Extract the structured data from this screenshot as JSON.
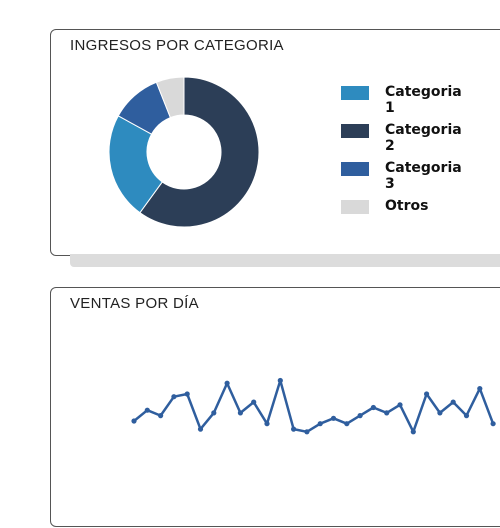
{
  "panels": {
    "income_title": "INGRESOS POR CATEGORIA",
    "sales_title": "VENTAS POR DÍA"
  },
  "chart_data": [
    {
      "type": "pie",
      "variant": "donut",
      "title": "INGRESOS POR CATEGORIA",
      "categories": [
        "Categoria 1",
        "Categoria 2",
        "Categoria 3",
        "Otros"
      ],
      "values": [
        23,
        60,
        11,
        6
      ],
      "colors": [
        "#2e8bbf",
        "#2c3e57",
        "#2f5e9e",
        "#d9d9d9"
      ],
      "legend": "right"
    },
    {
      "type": "line",
      "title": "VENTAS POR DÍA",
      "x": [
        1,
        2,
        3,
        4,
        5,
        6,
        7,
        8,
        9,
        10,
        11,
        12,
        13,
        14,
        15,
        16,
        17,
        18,
        19,
        20,
        21,
        22,
        23,
        24,
        25,
        26,
        27,
        28
      ],
      "series": [
        {
          "color": "#2f5e9e",
          "values": [
            10,
            14,
            12,
            19,
            20,
            7,
            13,
            24,
            13,
            17,
            9,
            25,
            7,
            6,
            9,
            11,
            9,
            12,
            15,
            13,
            16,
            6,
            20,
            13,
            17,
            12,
            22,
            9
          ]
        }
      ],
      "ylim": [
        0,
        40
      ],
      "grid": false
    }
  ]
}
